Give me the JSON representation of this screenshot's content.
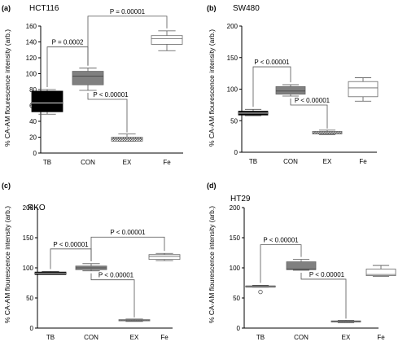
{
  "chart_data": [
    {
      "type": "box",
      "panel_label": "(a)",
      "title": "HCT116",
      "ylabel": "% CA-AM flourescence intensity (arb.)",
      "ylim": [
        0,
        160
      ],
      "yticks": [
        0,
        20,
        40,
        60,
        80,
        100,
        120,
        140,
        160
      ],
      "categories": [
        "TB",
        "CON",
        "EX",
        "Fe"
      ],
      "boxes": [
        {
          "category": "TB",
          "min": 49,
          "q1": 52,
          "median": 63,
          "q3": 78,
          "max": 80,
          "fill": "#000000",
          "outliers": []
        },
        {
          "category": "CON",
          "min": 79,
          "q1": 86,
          "median": 97,
          "q3": 103,
          "max": 107,
          "fill": "#808080",
          "outliers": []
        },
        {
          "category": "EX",
          "min": 15,
          "q1": 15,
          "median": 18,
          "q3": 20,
          "max": 24,
          "fill": "hatch",
          "outliers": []
        },
        {
          "category": "Fe",
          "min": 129,
          "q1": 137,
          "median": 144,
          "q3": 148,
          "max": 154,
          "fill": "#ffffff",
          "outliers": []
        }
      ],
      "comparisons": [
        {
          "from": "TB",
          "to": "CON",
          "label": "P = 0.0002"
        },
        {
          "from": "CON",
          "to": "EX",
          "label": "P < 0.00001"
        },
        {
          "from": "CON",
          "to": "Fe",
          "label": "P = 0.00001"
        }
      ]
    },
    {
      "type": "box",
      "panel_label": "(b)",
      "title": "SW480",
      "ylabel": "% CA-AM flourescence intensity (arb.)",
      "ylim": [
        0,
        200
      ],
      "yticks": [
        0,
        50,
        100,
        150,
        200
      ],
      "categories": [
        "TB",
        "CON",
        "EX",
        "Fe"
      ],
      "boxes": [
        {
          "category": "TB",
          "min": 58,
          "q1": 59,
          "median": 62,
          "q3": 65,
          "max": 68,
          "fill": "#000000",
          "outliers": []
        },
        {
          "category": "CON",
          "min": 89,
          "q1": 92,
          "median": 97,
          "q3": 104,
          "max": 107,
          "fill": "#808080",
          "outliers": []
        },
        {
          "category": "EX",
          "min": 28,
          "q1": 29,
          "median": 31,
          "q3": 33,
          "max": 35,
          "fill": "hatch",
          "outliers": []
        },
        {
          "category": "Fe",
          "min": 81,
          "q1": 88,
          "median": 102,
          "q3": 112,
          "max": 118,
          "fill": "#ffffff",
          "outliers": []
        }
      ],
      "comparisons": [
        {
          "from": "TB",
          "to": "CON",
          "label": "P < 0.00001"
        },
        {
          "from": "CON",
          "to": "EX",
          "label": "P < 0.00001"
        }
      ]
    },
    {
      "type": "box",
      "panel_label": "(c)",
      "title": "RKO",
      "ylabel": "% CA-AM flourescence intensity (arb.)",
      "ylim": [
        0,
        200
      ],
      "yticks": [
        0,
        50,
        100,
        150,
        200
      ],
      "categories": [
        "TB",
        "CON",
        "EX",
        "Fe"
      ],
      "boxes": [
        {
          "category": "TB",
          "min": 89,
          "q1": 89,
          "median": 91,
          "q3": 93,
          "max": 94,
          "fill": "#000000",
          "outliers": []
        },
        {
          "category": "CON",
          "min": 95,
          "q1": 97,
          "median": 100,
          "q3": 103,
          "max": 107,
          "fill": "#808080",
          "outliers": []
        },
        {
          "category": "EX",
          "min": 11,
          "q1": 12,
          "median": 13,
          "q3": 14,
          "max": 15,
          "fill": "hatch",
          "outliers": []
        },
        {
          "category": "Fe",
          "min": 112,
          "q1": 114,
          "median": 119,
          "q3": 122,
          "max": 124,
          "fill": "#ffffff",
          "outliers": []
        }
      ],
      "comparisons": [
        {
          "from": "TB",
          "to": "CON",
          "label": "P < 0.00001"
        },
        {
          "from": "CON",
          "to": "EX",
          "label": "P < 0.00001"
        },
        {
          "from": "CON",
          "to": "Fe",
          "label": "P < 0.00001"
        }
      ]
    },
    {
      "type": "box",
      "panel_label": "(d)",
      "title": "HT29",
      "ylabel": "% CA-AM flourescence intensity (arb.)",
      "ylim": [
        0,
        200
      ],
      "yticks": [
        0,
        50,
        100,
        150,
        200
      ],
      "categories": [
        "TB",
        "CON",
        "EX",
        "Fe"
      ],
      "boxes": [
        {
          "category": "TB",
          "min": 68,
          "q1": 68,
          "median": 69,
          "q3": 70,
          "max": 71,
          "fill": "#000000",
          "outliers": [
            60
          ]
        },
        {
          "category": "CON",
          "min": 96,
          "q1": 97,
          "median": 98,
          "q3": 110,
          "max": 114,
          "fill": "#808080",
          "outliers": []
        },
        {
          "category": "EX",
          "min": 9,
          "q1": 10,
          "median": 11,
          "q3": 12,
          "max": 13,
          "fill": "hatch",
          "outliers": []
        },
        {
          "category": "Fe",
          "min": 86,
          "q1": 87,
          "median": 89,
          "q3": 98,
          "max": 104,
          "fill": "#ffffff",
          "outliers": []
        }
      ],
      "comparisons": [
        {
          "from": "TB",
          "to": "CON",
          "label": "P < 0.00001"
        },
        {
          "from": "CON",
          "to": "EX",
          "label": "P < 0.00001"
        }
      ]
    }
  ]
}
